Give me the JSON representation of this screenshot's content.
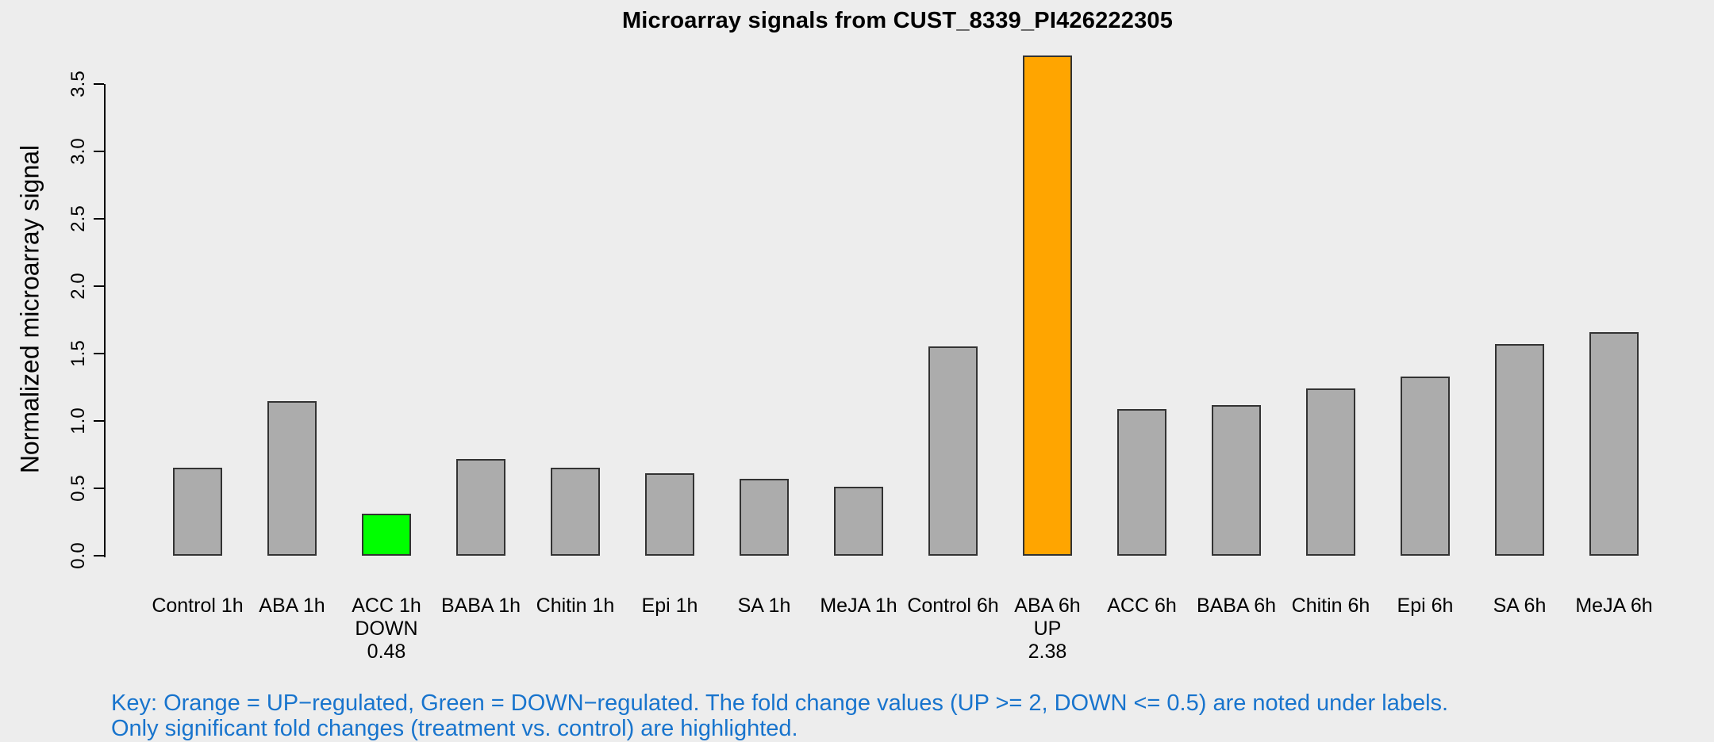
{
  "title": "Microarray signals from CUST_8339_PI426222305",
  "chart_data": {
    "type": "bar",
    "title": "Microarray signals from CUST_8339_PI426222305",
    "xlabel": "",
    "ylabel": "Normalized microarray signal",
    "ylim": [
      0,
      3.75
    ],
    "ytick_labels": [
      "0.0",
      "0.5",
      "1.0",
      "1.5",
      "2.0",
      "2.5",
      "3.0",
      "3.5"
    ],
    "grid": false,
    "legend_position": "none",
    "background_color": "#EDEDED",
    "categories": [
      "Control 1h",
      "ABA 1h",
      "ACC 1h",
      "BABA 1h",
      "Chitin 1h",
      "Epi 1h",
      "SA 1h",
      "MeJA 1h",
      "Control 6h",
      "ABA 6h",
      "ACC 6h",
      "BABA 6h",
      "Chitin 6h",
      "Epi 6h",
      "SA 6h",
      "MeJA 6h"
    ],
    "values": [
      0.65,
      1.15,
      0.31,
      0.72,
      0.65,
      0.61,
      0.57,
      0.51,
      1.55,
      3.71,
      1.09,
      1.12,
      1.24,
      1.33,
      1.57,
      1.66
    ],
    "bar_colors": [
      "#ACACAC",
      "#ACACAC",
      "#00FF00",
      "#ACACAC",
      "#ACACAC",
      "#ACACAC",
      "#ACACAC",
      "#ACACAC",
      "#ACACAC",
      "#FFA500",
      "#ACACAC",
      "#ACACAC",
      "#ACACAC",
      "#ACACAC",
      "#ACACAC",
      "#ACACAC"
    ],
    "bar_border_color": "#333333",
    "annotations": [
      {
        "category": "ACC 1h",
        "index": 2,
        "direction": "DOWN",
        "fold_change": "0.48"
      },
      {
        "category": "ABA 6h",
        "index": 9,
        "direction": "UP",
        "fold_change": "2.38"
      }
    ],
    "highlight_colors": {
      "up_regulated": "#FFA500",
      "down_regulated": "#00FF00",
      "default_bar": "#ACACAC"
    }
  },
  "footer": {
    "line1": "Key: Orange = UP−regulated, Green = DOWN−regulated. The fold change values (UP >= 2, DOWN <= 0.5) are noted under labels.",
    "line2": "Only significant fold changes (treatment vs. control) are highlighted.",
    "text_color": "#1874CD"
  }
}
